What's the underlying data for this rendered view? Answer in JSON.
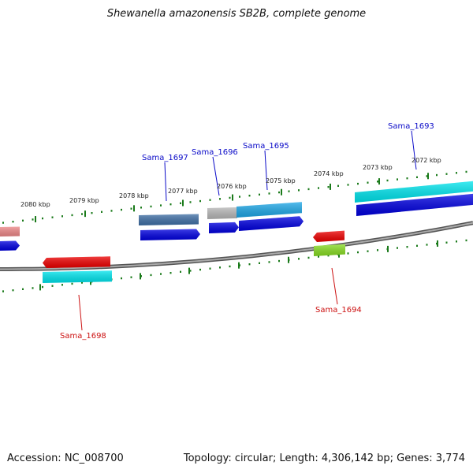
{
  "title": "Shewanella amazonensis SB2B, complete genome",
  "footer": {
    "accession_label": "Accession: ",
    "accession": "NC_008700",
    "topology_label": "Topology: ",
    "topology": "circular",
    "length_label": "; Length: ",
    "length": "4,306,142 bp",
    "genes_label": "; Genes: ",
    "genes": "3,774"
  },
  "scale_labels": [
    "2080 kbp",
    "2079 kbp",
    "2078 kbp",
    "2077 kbp",
    "2076 kbp",
    "2075 kbp",
    "2074 kbp",
    "2073 kbp",
    "2072 kbp"
  ],
  "gene_labels_top": [
    "Sama_1697",
    "Sama_1696",
    "Sama_1695",
    "Sama_1693"
  ],
  "gene_labels_bottom": [
    "Sama_1698",
    "Sama_1694"
  ],
  "colors": {
    "backbone": "#7a7a7a",
    "tick": "#1a7a1a",
    "blue": "#0000e0",
    "cyan": "#00e5ee",
    "steel": "#3f6fa6",
    "red": "#ee0000",
    "lime": "#88dd22",
    "gray": "#b8b8b8",
    "pink": "#ee8888",
    "sky": "#1ea8e8",
    "label_top": "#0a0ac8",
    "label_bottom": "#cc1111"
  }
}
